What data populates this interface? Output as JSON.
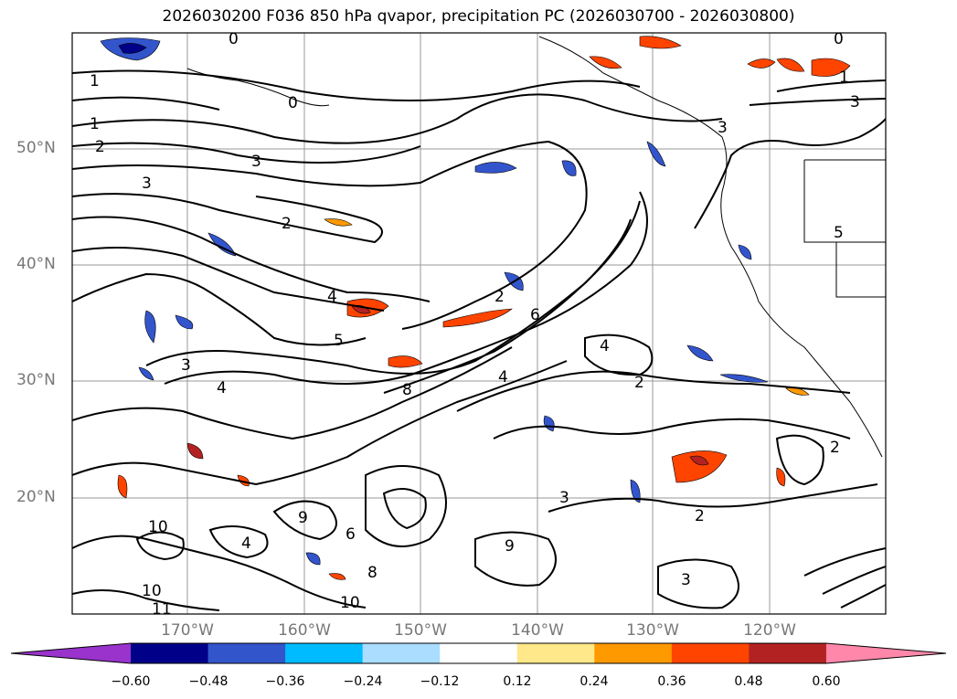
{
  "title": "2026030200 F036 850 hPa qvapor, precipitation PC (2026030700 - 2026030800)",
  "map": {
    "lat_labels": [
      "50°N",
      "40°N",
      "30°N",
      "20°N"
    ],
    "lon_labels": [
      "170°W",
      "160°W",
      "150°W",
      "140°W",
      "130°W",
      "120°W"
    ],
    "contour_labels": [
      "0",
      "0",
      "0",
      "1",
      "1",
      "1",
      "2",
      "2",
      "2",
      "2",
      "2",
      "3",
      "3",
      "3",
      "3",
      "3",
      "3",
      "4",
      "4",
      "4",
      "4",
      "5",
      "5",
      "6",
      "8",
      "8",
      "9",
      "9",
      "10",
      "10",
      "10",
      "11",
      "3",
      "2",
      "4",
      "6"
    ]
  },
  "colorbar": {
    "ticks": [
      "−0.60",
      "−0.48",
      "−0.36",
      "−0.24",
      "−0.12",
      "0.12",
      "0.24",
      "0.36",
      "0.48",
      "0.60"
    ],
    "colors": [
      "#9933cc",
      "#000088",
      "#3355cc",
      "#00bbff",
      "#aaddff",
      "#ffffff",
      "#ffe88a",
      "#ff9900",
      "#ff4400",
      "#b22222",
      "#ff88aa"
    ]
  }
}
